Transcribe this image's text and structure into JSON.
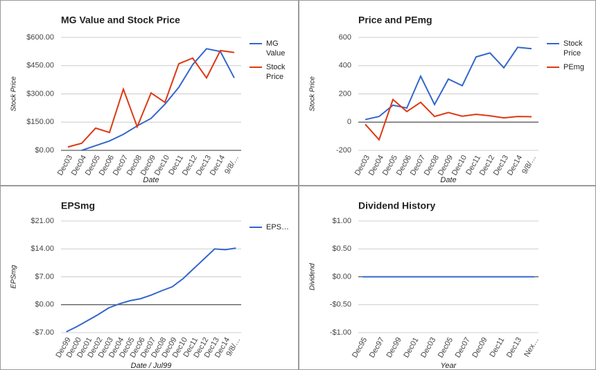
{
  "chart_data": [
    {
      "type": "line",
      "title": "MG Value and Stock Price",
      "ylabel": "Stock Price",
      "xlabel": "Date",
      "categories": [
        "Dec03",
        "Dec04",
        "Dec05",
        "Dec06",
        "Dec07",
        "Dec08",
        "Dec09",
        "Dec10",
        "Dec11",
        "Dec12",
        "Dec13",
        "Dec14",
        "9/8/…"
      ],
      "series": [
        {
          "name": "MG Value",
          "color": "#3366cc",
          "values": [
            null,
            0,
            25,
            50,
            85,
            130,
            170,
            245,
            335,
            455,
            540,
            525,
            385
          ]
        },
        {
          "name": "Stock Price",
          "color": "#dc3912",
          "values": [
            18,
            38,
            118,
            95,
            325,
            125,
            305,
            255,
            460,
            490,
            385,
            530,
            520
          ]
        }
      ],
      "ylim": [
        0,
        600
      ],
      "yticks": [
        {
          "value": 0,
          "label": "$0.00"
        },
        {
          "value": 150,
          "label": "$150.00"
        },
        {
          "value": 300,
          "label": "$300.00"
        },
        {
          "value": 450,
          "label": "$450.00"
        },
        {
          "value": 600,
          "label": "$600.00"
        }
      ],
      "grid": true,
      "legend": "right"
    },
    {
      "type": "line",
      "title": "Price and PEmg",
      "ylabel": "Stock Price",
      "xlabel": "Date",
      "categories": [
        "Dec03",
        "Dec04",
        "Dec05",
        "Dec06",
        "Dec07",
        "Dec08",
        "Dec09",
        "Dec10",
        "Dec11",
        "Dec12",
        "Dec13",
        "Dec14",
        "9/8/…"
      ],
      "series": [
        {
          "name": "Stock Price",
          "color": "#3366cc",
          "values": [
            18,
            40,
            120,
            100,
            325,
            125,
            305,
            258,
            462,
            490,
            385,
            530,
            520
          ]
        },
        {
          "name": "PEmg",
          "color": "#dc3912",
          "values": [
            -15,
            -125,
            160,
            75,
            140,
            40,
            68,
            42,
            55,
            45,
            30,
            40,
            38
          ]
        }
      ],
      "ylim": [
        -200,
        600
      ],
      "yticks": [
        -200,
        0,
        200,
        400,
        600
      ],
      "grid": true,
      "legend": "right"
    },
    {
      "type": "line",
      "title": "EPSmg",
      "ylabel": "EPSmg",
      "xlabel": "Date / Jul99",
      "categories": [
        "Dec99",
        "Dec00",
        "Dec01",
        "Dec02",
        "Dec03",
        "Dec04",
        "Dec05",
        "Dec06",
        "Dec07",
        "Dec08",
        "Dec09",
        "Dec10",
        "Dec11",
        "Dec12",
        "Dec13",
        "Dec14",
        "9/8/…"
      ],
      "series": [
        {
          "name": "EPS…",
          "color": "#3366cc",
          "values": [
            -6.8,
            -5.5,
            -4,
            -2.5,
            -0.8,
            0.2,
            1.0,
            1.5,
            2.4,
            3.5,
            4.5,
            6.5,
            9,
            11.5,
            14,
            13.8,
            14.2
          ]
        }
      ],
      "ylim": [
        -7,
        21
      ],
      "yticks": [
        {
          "value": -7,
          "label": "-$7.00"
        },
        {
          "value": 0,
          "label": "$0.00"
        },
        {
          "value": 7,
          "label": "$7.00"
        },
        {
          "value": 14,
          "label": "$14.00"
        },
        {
          "value": 21,
          "label": "$21.00"
        }
      ],
      "grid": true,
      "legend": "right"
    },
    {
      "type": "line",
      "title": "Dividend History",
      "ylabel": "Dividend",
      "xlabel": "Year",
      "categories": [
        "Dec95",
        null,
        "Dec97",
        null,
        "Dec99",
        null,
        "Dec01",
        null,
        "Dec03",
        null,
        "Dec05",
        null,
        "Dec07",
        null,
        "Dec09",
        null,
        "Dec11",
        null,
        "Dec13",
        null,
        "Nex…"
      ],
      "series": [
        {
          "color": "#3366cc",
          "values": [
            0,
            0,
            0,
            0,
            0,
            0,
            0,
            0,
            0,
            0,
            0,
            0,
            0,
            0,
            0,
            0,
            0,
            0,
            0,
            0,
            0
          ]
        }
      ],
      "ylim": [
        -1,
        1
      ],
      "yticks": [
        {
          "value": -1,
          "label": "-$1.00"
        },
        {
          "value": -0.5,
          "label": "-$0.50"
        },
        {
          "value": 0,
          "label": "$0.00"
        },
        {
          "value": 0.5,
          "label": "$0.50"
        },
        {
          "value": 1,
          "label": "$1.00"
        }
      ],
      "grid": true
    }
  ]
}
